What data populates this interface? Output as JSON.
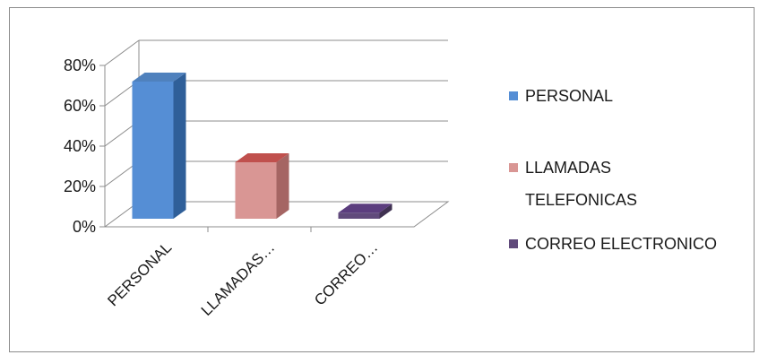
{
  "chart_data": {
    "type": "bar",
    "style": "3d-column",
    "categories": [
      "PERSONAL",
      "LLAMADAS TELEFONICAS",
      "CORREO ELECTRONICO"
    ],
    "category_tick_labels": [
      "PERSONAL",
      "LLAMADAS…",
      "CORREO…"
    ],
    "values": [
      0.68,
      0.28,
      0.03
    ],
    "ylim": [
      0,
      0.8
    ],
    "yticks": [
      0,
      0.2,
      0.4,
      0.6,
      0.8
    ],
    "ytick_labels": [
      "0%",
      "20%",
      "40%",
      "60%",
      "80%"
    ],
    "grid": true,
    "legend_position": "right",
    "legend": [
      {
        "label": "PERSONAL",
        "lines": [
          "PERSONAL"
        ]
      },
      {
        "label": "LLAMADAS TELEFONICAS",
        "lines": [
          "LLAMADAS",
          "TELEFONICAS"
        ]
      },
      {
        "label": "CORREO ELECTRONICO",
        "lines": [
          "CORREO ELECTRONICO"
        ]
      }
    ],
    "colors": [
      {
        "front": "#558ed5",
        "side": "#2f5f99",
        "top": "#4f81bd"
      },
      {
        "front": "#d99694",
        "side": "#a56563",
        "top": "#c0504d"
      },
      {
        "front": "#604a7b",
        "side": "#3f3151",
        "top": "#5b3d7e"
      }
    ]
  }
}
